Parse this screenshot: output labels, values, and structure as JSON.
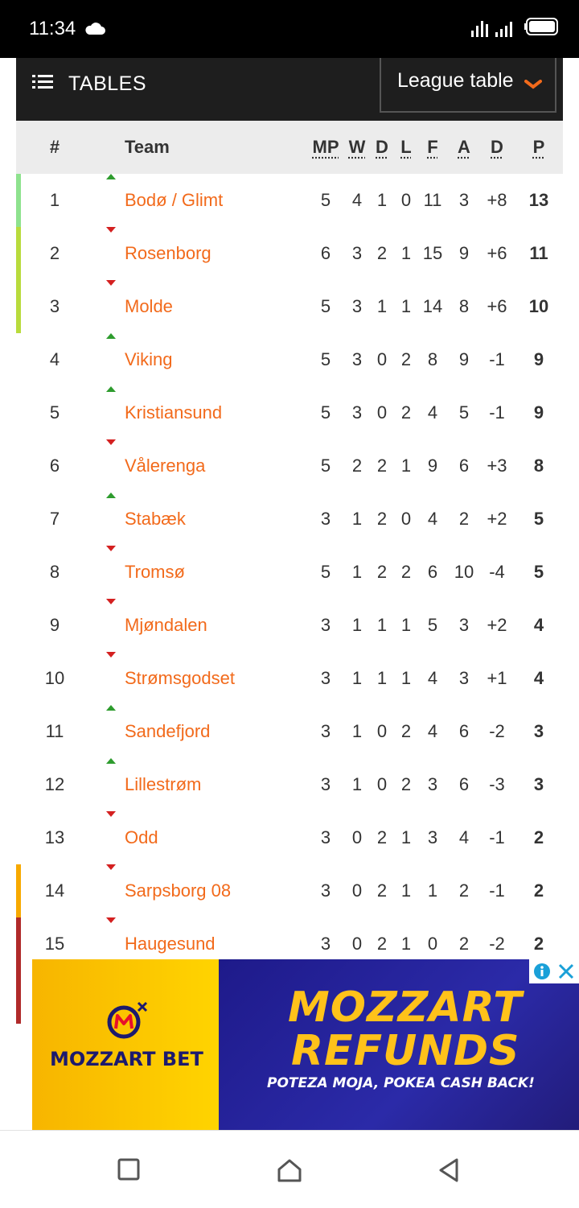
{
  "status_bar": {
    "time": "11:34"
  },
  "header": {
    "title": "TABLES",
    "selector_label": "League table"
  },
  "table": {
    "columns": {
      "rank": "#",
      "team": "Team",
      "mp": "MP",
      "w": "W",
      "d": "D",
      "l": "L",
      "f": "F",
      "a": "A",
      "gd": "D",
      "p": "P"
    },
    "rows": [
      {
        "rank": "1",
        "trend": "up",
        "team": "Bodø / Glimt",
        "mp": "5",
        "w": "4",
        "d": "1",
        "l": "0",
        "f": "11",
        "a": "3",
        "gd": "+8",
        "p": "13",
        "zone_color": "#8ee28e"
      },
      {
        "rank": "2",
        "trend": "down",
        "team": "Rosenborg",
        "mp": "6",
        "w": "3",
        "d": "2",
        "l": "1",
        "f": "15",
        "a": "9",
        "gd": "+6",
        "p": "11",
        "zone_color": "#b9db3c"
      },
      {
        "rank": "3",
        "trend": "down",
        "team": "Molde",
        "mp": "5",
        "w": "3",
        "d": "1",
        "l": "1",
        "f": "14",
        "a": "8",
        "gd": "+6",
        "p": "10",
        "zone_color": "#b9db3c"
      },
      {
        "rank": "4",
        "trend": "up",
        "team": "Viking",
        "mp": "5",
        "w": "3",
        "d": "0",
        "l": "2",
        "f": "8",
        "a": "9",
        "gd": "-1",
        "p": "9",
        "zone_color": ""
      },
      {
        "rank": "5",
        "trend": "up",
        "team": "Kristiansund",
        "mp": "5",
        "w": "3",
        "d": "0",
        "l": "2",
        "f": "4",
        "a": "5",
        "gd": "-1",
        "p": "9",
        "zone_color": ""
      },
      {
        "rank": "6",
        "trend": "down",
        "team": "Vålerenga",
        "mp": "5",
        "w": "2",
        "d": "2",
        "l": "1",
        "f": "9",
        "a": "6",
        "gd": "+3",
        "p": "8",
        "zone_color": ""
      },
      {
        "rank": "7",
        "trend": "up",
        "team": "Stabæk",
        "mp": "3",
        "w": "1",
        "d": "2",
        "l": "0",
        "f": "4",
        "a": "2",
        "gd": "+2",
        "p": "5",
        "zone_color": ""
      },
      {
        "rank": "8",
        "trend": "down",
        "team": "Tromsø",
        "mp": "5",
        "w": "1",
        "d": "2",
        "l": "2",
        "f": "6",
        "a": "10",
        "gd": "-4",
        "p": "5",
        "zone_color": ""
      },
      {
        "rank": "9",
        "trend": "down",
        "team": "Mjøndalen",
        "mp": "3",
        "w": "1",
        "d": "1",
        "l": "1",
        "f": "5",
        "a": "3",
        "gd": "+2",
        "p": "4",
        "zone_color": ""
      },
      {
        "rank": "10",
        "trend": "down",
        "team": "Strømsgodset",
        "mp": "3",
        "w": "1",
        "d": "1",
        "l": "1",
        "f": "4",
        "a": "3",
        "gd": "+1",
        "p": "4",
        "zone_color": ""
      },
      {
        "rank": "11",
        "trend": "up",
        "team": "Sandefjord",
        "mp": "3",
        "w": "1",
        "d": "0",
        "l": "2",
        "f": "4",
        "a": "6",
        "gd": "-2",
        "p": "3",
        "zone_color": ""
      },
      {
        "rank": "12",
        "trend": "up",
        "team": "Lillestrøm",
        "mp": "3",
        "w": "1",
        "d": "0",
        "l": "2",
        "f": "3",
        "a": "6",
        "gd": "-3",
        "p": "3",
        "zone_color": ""
      },
      {
        "rank": "13",
        "trend": "down",
        "team": "Odd",
        "mp": "3",
        "w": "0",
        "d": "2",
        "l": "1",
        "f": "3",
        "a": "4",
        "gd": "-1",
        "p": "2",
        "zone_color": ""
      },
      {
        "rank": "14",
        "trend": "down",
        "team": "Sarpsborg 08",
        "mp": "3",
        "w": "0",
        "d": "2",
        "l": "1",
        "f": "1",
        "a": "2",
        "gd": "-1",
        "p": "2",
        "zone_color": "#f7a900"
      },
      {
        "rank": "15",
        "trend": "down",
        "team": "Haugesund",
        "mp": "3",
        "w": "0",
        "d": "2",
        "l": "1",
        "f": "0",
        "a": "2",
        "gd": "-2",
        "p": "2",
        "zone_color": "#b02a2a"
      }
    ],
    "relegation_bar_extension_color": "#b02a2a"
  },
  "ad": {
    "brand": "MOZZART BET",
    "headline_1": "MOZZART",
    "headline_2": "REFUNDS",
    "tagline": "POTEZA MOJA, POKEA CASH BACK!"
  },
  "icons": [
    "cloud-icon",
    "signal-icon",
    "battery-icon",
    "menu-icon",
    "chevron-down-icon",
    "trend-up-icon",
    "trend-down-icon",
    "ad-info-icon",
    "ad-close-icon",
    "recent-apps-icon",
    "home-icon",
    "back-icon"
  ]
}
